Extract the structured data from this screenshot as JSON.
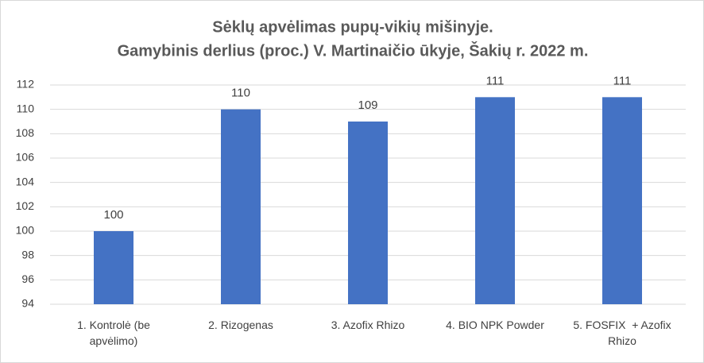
{
  "chart_data": {
    "type": "bar",
    "title": "Sėklų apvėlimas pupų-vikių mišinyje.",
    "subtitle": "Gamybinis derlius (proc.) V. Martinaičio ūkyje, Šakių r. 2022 m.",
    "categories": [
      "1. Kontrolė (be apvėlimo)",
      "2. Rizogenas",
      "3. Azofix Rhizo",
      "4. BIO NPK Powder",
      "5. FOSFIX  + Azofix Rhizo"
    ],
    "values": [
      100,
      110,
      109,
      111,
      111
    ],
    "color": "#4472c4",
    "ylim": [
      94,
      112
    ],
    "yticks": [
      94,
      96,
      98,
      100,
      102,
      104,
      106,
      108,
      110,
      112
    ],
    "grid": true
  }
}
